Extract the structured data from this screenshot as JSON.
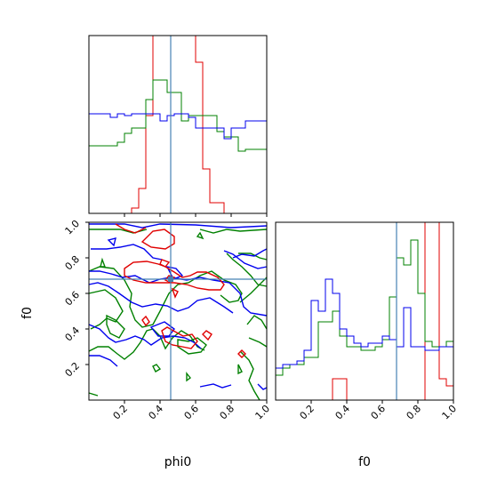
{
  "chart_data": {
    "type": "corner",
    "truth": {
      "phi0": 0.46,
      "f0": 0.68
    },
    "truth_color": "#4682b4",
    "series_colors": [
      "#e00000",
      "#008000",
      "#0000ee"
    ],
    "series": [
      {
        "color": "#e00000",
        "phi0_hist": [
          0,
          0,
          0,
          0,
          0,
          0,
          0.03,
          0.14,
          0.55,
          1.35,
          1.45,
          1.38,
          1.3,
          1.3,
          1.35,
          0.85,
          0.25,
          0.06,
          0.06,
          0,
          0,
          0,
          0,
          0,
          0
        ],
        "f0_hist": [
          0,
          0,
          0,
          0,
          0,
          0,
          0,
          0,
          0.12,
          0.12,
          0,
          0,
          0,
          0,
          0,
          0,
          0,
          0,
          0,
          0,
          0,
          1.3,
          1.4,
          0.12,
          0.08
        ]
      },
      {
        "color": "#008000",
        "phi0_hist": [
          0.38,
          0.38,
          0.38,
          0.38,
          0.4,
          0.45,
          0.48,
          0.48,
          0.64,
          0.75,
          0.75,
          0.68,
          0.68,
          0.52,
          0.55,
          0.55,
          0.55,
          0.55,
          0.46,
          0.43,
          0.43,
          0.35,
          0.36,
          0.36,
          0.36
        ],
        "f0_hist": [
          0.14,
          0.18,
          0.2,
          0.2,
          0.24,
          0.24,
          0.44,
          0.44,
          0.5,
          0.36,
          0.3,
          0.3,
          0.28,
          0.28,
          0.3,
          0.34,
          0.58,
          0.8,
          0.76,
          0.9,
          0.6,
          0.33,
          0.3,
          0.3,
          0.33
        ]
      },
      {
        "color": "#0000ee",
        "phi0_hist": [
          0.56,
          0.56,
          0.56,
          0.54,
          0.56,
          0.55,
          0.56,
          0.56,
          0.56,
          0.56,
          0.52,
          0.55,
          0.56,
          0.56,
          0.54,
          0.48,
          0.48,
          0.48,
          0.48,
          0.42,
          0.48,
          0.48,
          0.52,
          0.52,
          0.52
        ],
        "f0_hist": [
          0.18,
          0.2,
          0.2,
          0.22,
          0.28,
          0.56,
          0.5,
          0.68,
          0.6,
          0.4,
          0.36,
          0.32,
          0.3,
          0.32,
          0.32,
          0.36,
          0.34,
          0.3,
          0.52,
          0.3,
          0.3,
          0.28,
          0.28,
          0.3,
          0.3
        ]
      }
    ],
    "ticks": [
      0.2,
      0.4,
      0.6,
      0.8,
      1.0
    ],
    "tick_labels": [
      "0.2",
      "0.4",
      "0.6",
      "0.8",
      "1.0"
    ],
    "xlabel_phi0": "phi0",
    "xlabel_f0": "f0",
    "ylabel_f0": "f0",
    "xlim": [
      0,
      1
    ],
    "ylim": [
      0,
      1
    ]
  }
}
